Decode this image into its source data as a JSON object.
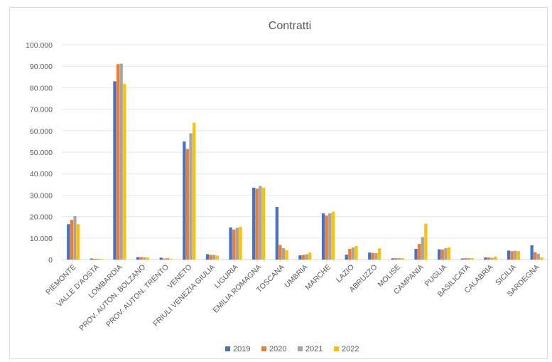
{
  "chart_data": {
    "type": "bar",
    "title": "Contratti",
    "xlabel": "",
    "ylabel": "",
    "ylim": [
      0,
      100000
    ],
    "yticks": [
      "0",
      "10.000",
      "20.000",
      "30.000",
      "40.000",
      "50.000",
      "60.000",
      "70.000",
      "80.000",
      "90.000",
      "100.000"
    ],
    "grid": true,
    "legend": "bottom",
    "categories": [
      "PIEMONTE",
      "VALLE D'AOSTA",
      "LOMBARDIA",
      "PROV. AUTON. BOLZANO",
      "PROV. AUTON. TRENTO",
      "VENETO",
      "FRIULI VENEZIA GIULIA",
      "LIGURIA",
      "EMILIA ROMAGNA",
      "TOSCANA",
      "UMBRIA",
      "MARCHE",
      "LAZIO",
      "ABRUZZO",
      "MOLISE",
      "CAMPANIA",
      "PUGLIA",
      "BASILICATA",
      "CALABRIA",
      "SICILIA",
      "SARDEGNA"
    ],
    "series": [
      {
        "name": "2019",
        "color": "#4472c4",
        "values": [
          16500,
          500,
          83000,
          1200,
          900,
          55000,
          2500,
          15000,
          33500,
          24500,
          2000,
          21500,
          2300,
          3300,
          600,
          5000,
          4800,
          500,
          1000,
          4200,
          6700
        ]
      },
      {
        "name": "2020",
        "color": "#ed7d31",
        "values": [
          18500,
          400,
          91000,
          1200,
          500,
          51500,
          2200,
          14000,
          33000,
          6800,
          2200,
          20500,
          5000,
          3000,
          700,
          7300,
          4700,
          700,
          1000,
          3900,
          3500
        ]
      },
      {
        "name": "2021",
        "color": "#a5a5a5",
        "values": [
          20200,
          400,
          91200,
          1000,
          700,
          58800,
          2200,
          14800,
          34300,
          5300,
          2500,
          21500,
          5700,
          3000,
          700,
          10500,
          5300,
          700,
          800,
          4100,
          2700
        ]
      },
      {
        "name": "2022",
        "color": "#ffc000",
        "values": [
          16500,
          300,
          81800,
          900,
          400,
          63700,
          1900,
          15300,
          33500,
          4300,
          3300,
          22300,
          6300,
          5200,
          700,
          16700,
          5700,
          700,
          1400,
          3900,
          1000
        ]
      }
    ]
  }
}
